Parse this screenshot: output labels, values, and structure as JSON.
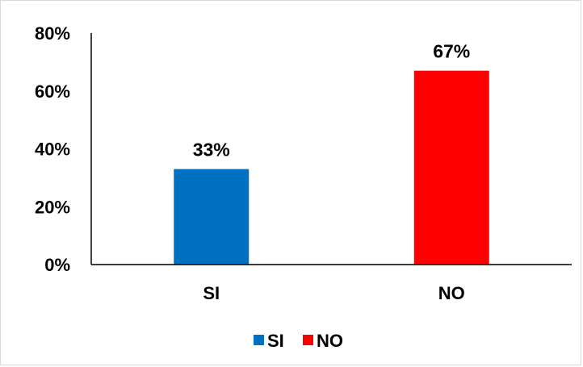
{
  "chart_data": {
    "type": "bar",
    "categories": [
      "SI",
      "NO"
    ],
    "series": [
      {
        "name": "SI",
        "category": "SI",
        "value": 0.33,
        "color": "#0070C0"
      },
      {
        "name": "NO",
        "category": "NO",
        "value": 0.67,
        "color": "#FF0000"
      }
    ],
    "values": [
      0.33,
      0.67
    ],
    "data_labels": [
      "33%",
      "67%"
    ],
    "ylim": [
      0,
      0.8
    ],
    "y_ticks": [
      "0%",
      "20%",
      "40%",
      "60%",
      "80%"
    ],
    "y_tick_values": [
      0,
      0.2,
      0.4,
      0.6,
      0.8
    ],
    "grid": false,
    "legend_position": "bottom",
    "title": "",
    "xlabel": "",
    "ylabel": ""
  }
}
